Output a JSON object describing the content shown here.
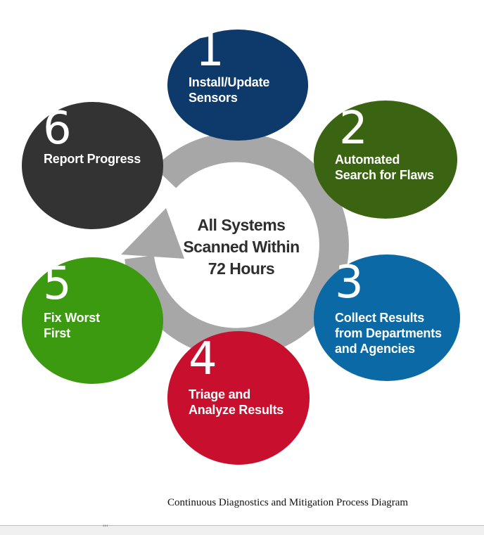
{
  "diagram": {
    "center": {
      "lines": [
        "All Systems",
        "Scanned Within",
        "72 Hours"
      ]
    },
    "steps": [
      {
        "number": "1",
        "lines": [
          "Install/Update",
          "Sensors"
        ],
        "color": "#0d3a6a"
      },
      {
        "number": "2",
        "lines": [
          "Automated",
          "Search for Flaws"
        ],
        "color": "#3a6412"
      },
      {
        "number": "3",
        "lines": [
          "Collect Results",
          "from Departments",
          "and Agencies"
        ],
        "color": "#0b6aa6"
      },
      {
        "number": "4",
        "lines": [
          "Triage and",
          "Analyze Results"
        ],
        "color": "#c8102e"
      },
      {
        "number": "5",
        "lines": [
          "Fix Worst",
          "First"
        ],
        "color": "#3b9a0f"
      },
      {
        "number": "6",
        "lines": [
          "Report Progress"
        ],
        "color": "#333333"
      }
    ],
    "ring_color": "#a7a7a7"
  },
  "caption": "Continuous Diagnostics and Mitigation Process Diagram",
  "footer": {
    "marker": "'''"
  }
}
